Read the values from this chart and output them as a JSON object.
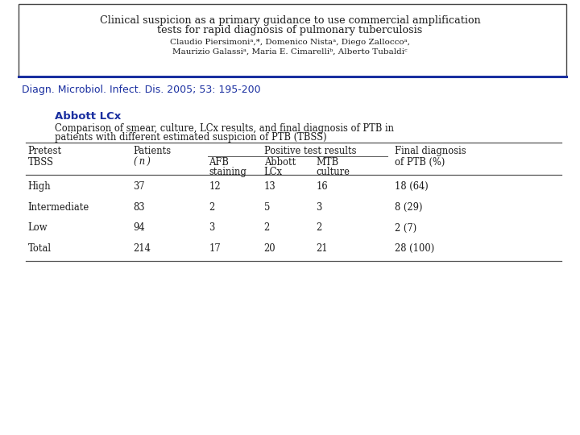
{
  "bg_color": "#ffffff",
  "title_line1": "Clinical suspicion as a primary guidance to use commercial amplification",
  "title_line2": "tests for rapid diagnosis of pulmonary tuberculosis",
  "authors_line1": "Claudio Piersimoniᵃ,*, Domenico Nistaᵃ, Diego Zalloccoᵃ,",
  "authors_line2": "Maurizio Galassiᵃ, Maria E. Cimarelliᵇ, Alberto Tubaldiᶜ",
  "journal_ref": "Diagn. Microbiol. Infect. Dis. 2005; 53: 195-200",
  "section_title": "Abbott LCx",
  "table_caption_line1": "Comparison of smear, culture, LCx results, and final diagnosis of PTB in",
  "table_caption_line2": "patients with different estimated suspicion of PTB (TBSS)",
  "table_rows": [
    [
      "High",
      "37",
      "12",
      "13",
      "16",
      "18 (64)"
    ],
    [
      "Intermediate",
      "83",
      "2",
      "5",
      "3",
      "8 (29)"
    ],
    [
      "Low",
      "94",
      "3",
      "2",
      "2",
      "2 (7)"
    ],
    [
      "Total",
      "214",
      "17",
      "20",
      "21",
      "28 (100)"
    ]
  ],
  "blue_color": "#1a2fa0",
  "black_color": "#1a1a1a",
  "line_color": "#555555"
}
